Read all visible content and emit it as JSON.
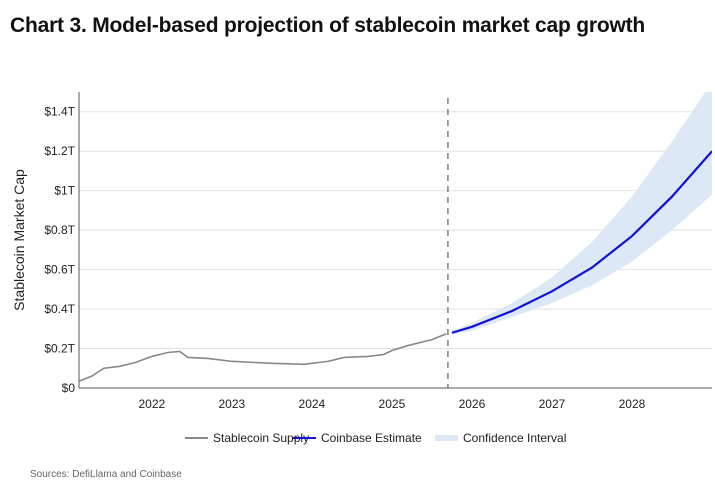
{
  "title": "Chart 3. Model-based projection of stablecoin market cap growth",
  "source": "Sources: DefiLlama and Coinbase",
  "chart_data": {
    "type": "line",
    "title": "Chart 3. Model-based projection of stablecoin market cap growth",
    "ylabel": "Stablecoin Market Cap",
    "xlabel": "",
    "xlim": [
      2021.09,
      2029.0
    ],
    "ylim": [
      0,
      1.5
    ],
    "grid": true,
    "legend_placement": "bottom",
    "x_ticks": [
      {
        "v": 2022,
        "label": "2022"
      },
      {
        "v": 2023,
        "label": "2023"
      },
      {
        "v": 2024,
        "label": "2024"
      },
      {
        "v": 2025,
        "label": "2025"
      },
      {
        "v": 2026,
        "label": "2026"
      },
      {
        "v": 2027,
        "label": "2027"
      },
      {
        "v": 2028,
        "label": "2028"
      }
    ],
    "y_ticks": [
      {
        "v": 0,
        "label": "$0"
      },
      {
        "v": 0.2,
        "label": "$0.2T"
      },
      {
        "v": 0.4,
        "label": "$0.4T"
      },
      {
        "v": 0.6,
        "label": "$0.6T"
      },
      {
        "v": 0.8,
        "label": "$0.8T"
      },
      {
        "v": 1.0,
        "label": "$1T"
      },
      {
        "v": 1.2,
        "label": "$1.2T"
      },
      {
        "v": 1.4,
        "label": "$1.4T"
      }
    ],
    "forecast_start": 2025.7,
    "series": [
      {
        "name": "Stablecoin Supply",
        "color": "#888888",
        "x": [
          2021.09,
          2021.25,
          2021.4,
          2021.6,
          2021.8,
          2022.0,
          2022.2,
          2022.35,
          2022.45,
          2022.7,
          2023.0,
          2023.5,
          2023.9,
          2024.2,
          2024.4,
          2024.7,
          2024.9,
          2025.0,
          2025.2,
          2025.5,
          2025.68
        ],
        "y": [
          0.035,
          0.06,
          0.1,
          0.11,
          0.13,
          0.16,
          0.18,
          0.185,
          0.155,
          0.15,
          0.135,
          0.125,
          0.12,
          0.135,
          0.155,
          0.16,
          0.17,
          0.19,
          0.215,
          0.245,
          0.275
        ]
      },
      {
        "name": "Coinbase Estimate",
        "color": "#1010d8",
        "x": [
          2025.75,
          2026.0,
          2026.5,
          2027.0,
          2027.5,
          2028.0,
          2028.5,
          2029.0
        ],
        "y": [
          0.28,
          0.31,
          0.39,
          0.49,
          0.61,
          0.77,
          0.97,
          1.2
        ]
      },
      {
        "name": "Confidence Interval",
        "color": "#dce8f6",
        "x": [
          2025.75,
          2026.0,
          2026.5,
          2027.0,
          2027.5,
          2028.0,
          2028.5,
          2029.0
        ],
        "upper": [
          0.29,
          0.33,
          0.43,
          0.56,
          0.74,
          0.97,
          1.25,
          1.55
        ],
        "lower": [
          0.27,
          0.29,
          0.36,
          0.43,
          0.52,
          0.64,
          0.8,
          0.98
        ]
      }
    ]
  }
}
